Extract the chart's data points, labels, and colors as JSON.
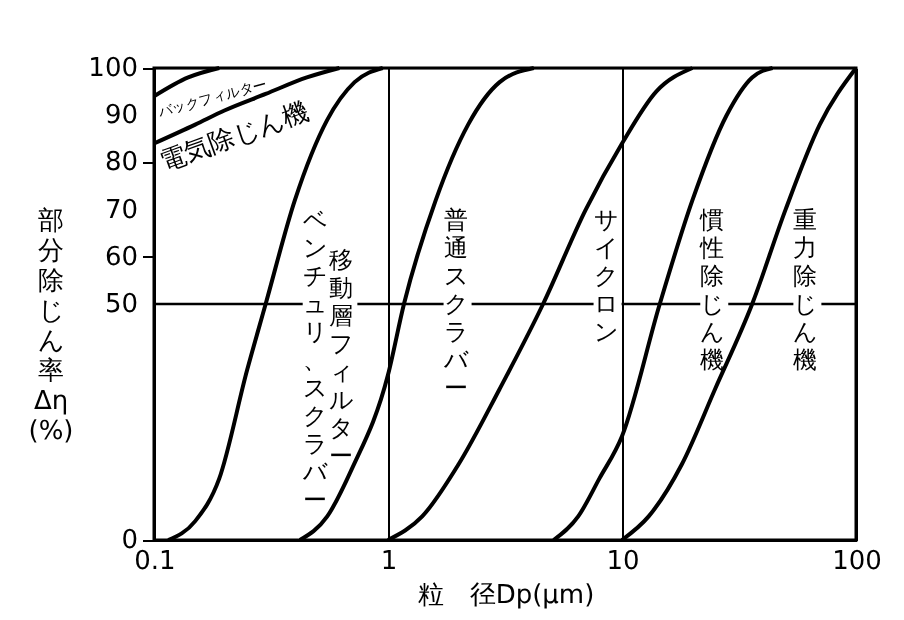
{
  "chart_data": {
    "type": "line",
    "xlabel": "粒　径Dp(μm)",
    "ylabel": "部分除じん率 Δη (%)",
    "log": "x",
    "xlim": [
      0.1,
      100
    ],
    "xticks": [
      0.1,
      1,
      10,
      100
    ],
    "ylim": [
      0,
      100
    ],
    "yticks": [
      0,
      50,
      60,
      70,
      80,
      90,
      100
    ],
    "grid": "x",
    "legend": false,
    "line_style": "solid",
    "marker": "none",
    "ref_lines": [
      {
        "axis": "y",
        "value": 50
      }
    ],
    "annotations": [
      "移動層フィルター"
    ],
    "series": [
      {
        "name": "バックフィルター",
        "color": "#000000",
        "x": [
          0.1,
          0.14,
          0.19
        ],
        "values": [
          94,
          98,
          100
        ]
      },
      {
        "name": "電気除じん機",
        "color": "#000000",
        "x": [
          0.1,
          0.15,
          0.2,
          0.3,
          0.45,
          0.62
        ],
        "values": [
          84,
          88,
          91,
          94.5,
          98,
          100
        ]
      },
      {
        "name": "ベンチュリ、スクラバー",
        "color": "#000000",
        "x": [
          0.115,
          0.15,
          0.19,
          0.25,
          0.3,
          0.4,
          0.55,
          0.72,
          0.95
        ],
        "values": [
          0,
          4,
          13,
          36,
          50,
          72,
          89,
          97,
          100
        ]
      },
      {
        "name": "普通スクラバー",
        "color": "#000000",
        "x": [
          0.42,
          0.55,
          0.7,
          1,
          1.17,
          1.6,
          2.2,
          3,
          4.2
        ],
        "values": [
          0,
          5,
          15,
          35,
          50,
          72,
          88,
          97,
          100
        ]
      },
      {
        "name": "サイクロン",
        "color": "#000000",
        "x": [
          1,
          1.4,
          2,
          3,
          4.6,
          7,
          10,
          14,
          20
        ],
        "values": [
          0,
          5,
          16,
          32,
          50,
          70,
          84,
          95,
          100
        ]
      },
      {
        "name": "慣性除じん機",
        "color": "#000000",
        "x": [
          5.1,
          6.5,
          8,
          10,
          14.5,
          20,
          28,
          36,
          44
        ],
        "values": [
          0,
          5,
          13,
          22,
          50,
          72,
          90,
          98,
          100
        ]
      },
      {
        "name": "重力除じん機",
        "color": "#000000",
        "x": [
          10,
          13,
          18,
          25,
          36,
          50,
          70,
          100
        ],
        "values": [
          0,
          5,
          16,
          32,
          50,
          70,
          88,
          100
        ]
      }
    ]
  }
}
